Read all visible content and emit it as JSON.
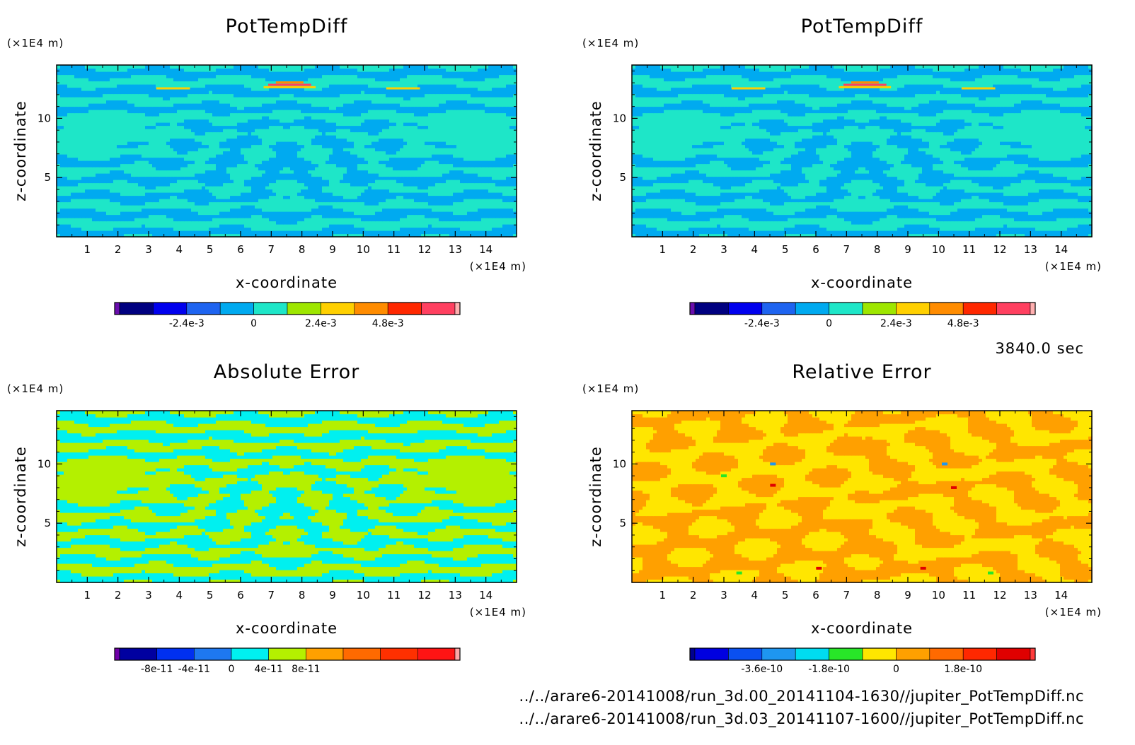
{
  "figure": {
    "time_label": "3840.0 sec",
    "file_paths": [
      "../../arare6-20141008/run_3d.00_20141104-1630//jupiter_PotTempDiff.nc",
      "../../arare6-20141008/run_3d.03_20141107-1600//jupiter_PotTempDiff.nc"
    ]
  },
  "chart_data": [
    {
      "type": "heatmap",
      "title": "PotTempDiff",
      "xlabel": "x-coordinate",
      "ylabel": "z-coordinate",
      "x_unit": "(×1E4 m)",
      "y_unit": "(×1E4 m)",
      "xlim": [
        0,
        15
      ],
      "ylim": [
        0,
        14.5
      ],
      "x_ticks": [
        1,
        2,
        3,
        4,
        5,
        6,
        7,
        8,
        9,
        10,
        11,
        12,
        13,
        14
      ],
      "y_ticks": [
        5,
        10
      ],
      "pattern": "pot",
      "colorbar": {
        "colors": [
          "#6a0dad",
          "#000080",
          "#0000ee",
          "#1e64f0",
          "#00aaf0",
          "#1ee6c8",
          "#9ee600",
          "#ffd000",
          "#ff8c00",
          "#ff2800",
          "#ff4060",
          "#ffb0b0"
        ],
        "tick_labels": [
          "-2.4e-3",
          "0",
          "2.4e-3",
          "4.8e-3"
        ]
      }
    },
    {
      "type": "heatmap",
      "title": "PotTempDiff",
      "xlabel": "x-coordinate",
      "ylabel": "z-coordinate",
      "x_unit": "(×1E4 m)",
      "y_unit": "(×1E4 m)",
      "xlim": [
        0,
        15
      ],
      "ylim": [
        0,
        14.5
      ],
      "x_ticks": [
        1,
        2,
        3,
        4,
        5,
        6,
        7,
        8,
        9,
        10,
        11,
        12,
        13,
        14
      ],
      "y_ticks": [
        5,
        10
      ],
      "pattern": "pot",
      "colorbar": {
        "colors": [
          "#6a0dad",
          "#000080",
          "#0000ee",
          "#1e64f0",
          "#00aaf0",
          "#1ee6c8",
          "#9ee600",
          "#ffd000",
          "#ff8c00",
          "#ff2800",
          "#ff4060",
          "#ffb0b0"
        ],
        "tick_labels": [
          "-2.4e-3",
          "0",
          "2.4e-3",
          "4.8e-3"
        ]
      }
    },
    {
      "type": "heatmap",
      "title": "Absolute Error",
      "xlabel": "x-coordinate",
      "ylabel": "z-coordinate",
      "x_unit": "(×1E4 m)",
      "y_unit": "(×1E4 m)",
      "xlim": [
        0,
        15
      ],
      "ylim": [
        0,
        14.5
      ],
      "x_ticks": [
        1,
        2,
        3,
        4,
        5,
        6,
        7,
        8,
        9,
        10,
        11,
        12,
        13,
        14
      ],
      "y_ticks": [
        5,
        10
      ],
      "pattern": "abs",
      "colorbar": {
        "colors": [
          "#7000a8",
          "#0000a0",
          "#0030f0",
          "#1e78f0",
          "#00f0f0",
          "#b4f000",
          "#ffa000",
          "#ff6a00",
          "#ff3000",
          "#ff1414",
          "#ffa8a8"
        ],
        "tick_labels": [
          "-8e-11",
          "-4e-11",
          "0",
          "4e-11",
          "8e-11"
        ]
      }
    },
    {
      "type": "heatmap",
      "title": "Relative Error",
      "xlabel": "x-coordinate",
      "ylabel": "z-coordinate",
      "x_unit": "(×1E4 m)",
      "y_unit": "(×1E4 m)",
      "xlim": [
        0,
        15
      ],
      "ylim": [
        0,
        14.5
      ],
      "x_ticks": [
        1,
        2,
        3,
        4,
        5,
        6,
        7,
        8,
        9,
        10,
        11,
        12,
        13,
        14
      ],
      "y_ticks": [
        5,
        10
      ],
      "pattern": "rel",
      "colorbar": {
        "colors": [
          "#000090",
          "#0000e0",
          "#0a50f0",
          "#1e96f0",
          "#00dcf0",
          "#28e628",
          "#ffe600",
          "#ffa000",
          "#ff6a00",
          "#ff2800",
          "#e00000",
          "#ff3c3c"
        ],
        "tick_labels": [
          "-3.6e-10",
          "-1.8e-10",
          "0",
          "1.8e-10"
        ]
      }
    }
  ]
}
